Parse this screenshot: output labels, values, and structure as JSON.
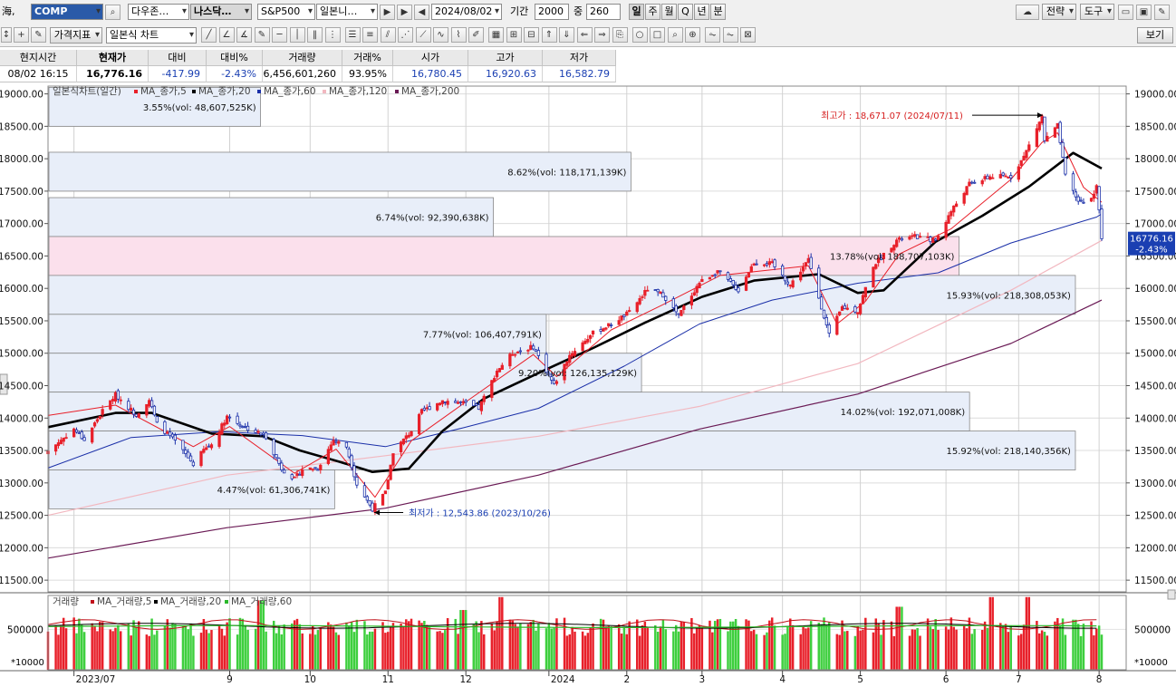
{
  "toolbar1": {
    "sea_label": "海,",
    "symbol": "COMP",
    "exchange_dd": "다우존…",
    "index_dd": "나스닥…",
    "sp_dd": "S&P500",
    "japan_dd": "일본니…",
    "date": "2024/08/02",
    "period_label": "기간",
    "period_value": "2000",
    "count_label": "중",
    "count_value": "260",
    "timeframes": [
      "일",
      "주",
      "월",
      "Q",
      "년",
      "분"
    ],
    "strategy_btn": "전략",
    "tools_btn": "도구"
  },
  "toolbar2": {
    "price_indicator_btn": "가격지표",
    "chart_type_dd": "일본식 차트",
    "view_btn": "보기"
  },
  "info": {
    "headers": [
      "현지시간",
      "현재가",
      "대비",
      "대비%",
      "거래량",
      "거래%",
      "시가",
      "고가",
      "저가"
    ],
    "values": [
      "08/02  16:15",
      "16,776.16",
      "-417.99",
      "-2.43%",
      "6,456,601,260",
      "93.95%",
      "16,780.45",
      "16,920.63",
      "16,582.79"
    ]
  },
  "colors": {
    "up": "#e8202a",
    "down": "#1a2fa8",
    "ma5": "#e8202a",
    "ma20": "#000000",
    "ma60": "#1a2fa8",
    "ma120": "#f2b8c0",
    "ma200": "#6a1a55",
    "vol_green": "#3ecf3e",
    "vol_red": "#e8202a",
    "profile_blue": "#e8eef9",
    "profile_pink": "#fbe0ec",
    "neg_badge": "#1a3fb2"
  },
  "chart_data": {
    "type": "candlestick",
    "title": "일본식차트(일간)",
    "legend": [
      "MA_종가,5",
      "MA_종가,20",
      "MA_종가,60",
      "MA_종가,120",
      "MA_종가,200"
    ],
    "y_ticks": [
      19000,
      18500,
      18000,
      17500,
      17000,
      16500,
      16000,
      15500,
      15000,
      14500,
      14000,
      13500,
      13000,
      12500,
      12000,
      11500
    ],
    "y_tick_labels": [
      "19000.00",
      "18500.00",
      "18000.00",
      "17500.00",
      "17000.00",
      "16500.00",
      "16000.00",
      "15500.00",
      "15000.00",
      "14500.00",
      "14000.00",
      "13500.00",
      "13000.00",
      "12500.00",
      "12000.00",
      "11500.00"
    ],
    "ylim": [
      11320,
      19120
    ],
    "x_months": [
      {
        "label": "2023/07",
        "date": "2023-07-03"
      },
      {
        "label": "9",
        "date": "2023-09-01"
      },
      {
        "label": "10",
        "date": "2023-10-02"
      },
      {
        "label": "11",
        "date": "2023-11-01"
      },
      {
        "label": "12",
        "date": "2023-12-01"
      },
      {
        "label": "2024",
        "date": "2024-01-02"
      },
      {
        "label": "2",
        "date": "2024-02-01"
      },
      {
        "label": "3",
        "date": "2024-03-01"
      },
      {
        "label": "4",
        "date": "2024-04-01"
      },
      {
        "label": "5",
        "date": "2024-05-01"
      },
      {
        "label": "6",
        "date": "2024-06-03"
      },
      {
        "label": "7",
        "date": "2024-07-01"
      },
      {
        "label": "8",
        "date": "2024-08-01"
      }
    ],
    "date_range": [
      "2023-06-23",
      "2024-08-02"
    ],
    "close_path": [
      [
        "2023-06-23",
        13490
      ],
      [
        "2023-07-03",
        13830
      ],
      [
        "2023-07-07",
        13660
      ],
      [
        "2023-07-14",
        14110
      ],
      [
        "2023-07-19",
        14360
      ],
      [
        "2023-07-27",
        14050
      ],
      [
        "2023-08-01",
        14280
      ],
      [
        "2023-08-04",
        13910
      ],
      [
        "2023-08-11",
        13640
      ],
      [
        "2023-08-18",
        13290
      ],
      [
        "2023-08-22",
        13510
      ],
      [
        "2023-08-25",
        13590
      ],
      [
        "2023-08-31",
        14030
      ],
      [
        "2023-09-06",
        13870
      ],
      [
        "2023-09-12",
        13770
      ],
      [
        "2023-09-15",
        13710
      ],
      [
        "2023-09-21",
        13220
      ],
      [
        "2023-09-26",
        13060
      ],
      [
        "2023-09-29",
        13210
      ],
      [
        "2023-10-05",
        13230
      ],
      [
        "2023-10-11",
        13660
      ],
      [
        "2023-10-16",
        13560
      ],
      [
        "2023-10-20",
        12980
      ],
      [
        "2023-10-26",
        12600
      ],
      [
        "2023-10-31",
        12850
      ],
      [
        "2023-11-03",
        13480
      ],
      [
        "2023-11-10",
        13800
      ],
      [
        "2023-11-14",
        14100
      ],
      [
        "2023-11-22",
        14270
      ],
      [
        "2023-11-30",
        14230
      ],
      [
        "2023-12-06",
        14150
      ],
      [
        "2023-12-13",
        14730
      ],
      [
        "2023-12-19",
        15000
      ],
      [
        "2023-12-27",
        15100
      ],
      [
        "2024-01-04",
        14510
      ],
      [
        "2024-01-10",
        14970
      ],
      [
        "2024-01-19",
        15310
      ],
      [
        "2024-01-26",
        15450
      ],
      [
        "2024-02-02",
        15630
      ],
      [
        "2024-02-09",
        15990
      ],
      [
        "2024-02-15",
        15900
      ],
      [
        "2024-02-21",
        15580
      ],
      [
        "2024-02-29",
        16090
      ],
      [
        "2024-03-07",
        16270
      ],
      [
        "2024-03-15",
        15970
      ],
      [
        "2024-03-21",
        16400
      ],
      [
        "2024-03-28",
        16380
      ],
      [
        "2024-04-04",
        16050
      ],
      [
        "2024-04-11",
        16440
      ],
      [
        "2024-04-19",
        15280
      ],
      [
        "2024-04-24",
        15710
      ],
      [
        "2024-04-30",
        15650
      ],
      [
        "2024-05-06",
        16350
      ],
      [
        "2024-05-15",
        16740
      ],
      [
        "2024-05-22",
        16800
      ],
      [
        "2024-05-30",
        16740
      ],
      [
        "2024-06-05",
        17190
      ],
      [
        "2024-06-12",
        17610
      ],
      [
        "2024-06-20",
        17720
      ],
      [
        "2024-06-28",
        17730
      ],
      [
        "2024-07-03",
        18030
      ],
      [
        "2024-07-10",
        18650
      ],
      [
        "2024-07-11",
        18280
      ],
      [
        "2024-07-16",
        18510
      ],
      [
        "2024-07-19",
        17730
      ],
      [
        "2024-07-24",
        17340
      ],
      [
        "2024-07-29",
        17370
      ],
      [
        "2024-07-31",
        17600
      ],
      [
        "2024-08-01",
        17190
      ],
      [
        "2024-08-02",
        16776
      ]
    ],
    "ma5_path": [
      [
        "2023-06-23",
        14040
      ],
      [
        "2023-07-19",
        14200
      ],
      [
        "2023-08-18",
        13560
      ],
      [
        "2023-09-01",
        13870
      ],
      [
        "2023-09-26",
        13150
      ],
      [
        "2023-10-12",
        13520
      ],
      [
        "2023-10-27",
        12780
      ],
      [
        "2023-11-10",
        13650
      ],
      [
        "2023-12-01",
        14250
      ],
      [
        "2023-12-27",
        14980
      ],
      [
        "2024-01-05",
        14640
      ],
      [
        "2024-01-26",
        15360
      ],
      [
        "2024-02-15",
        15750
      ],
      [
        "2024-03-08",
        16200
      ],
      [
        "2024-04-11",
        16350
      ],
      [
        "2024-04-22",
        15450
      ],
      [
        "2024-05-03",
        15800
      ],
      [
        "2024-05-16",
        16530
      ],
      [
        "2024-06-05",
        16920
      ],
      [
        "2024-06-28",
        17680
      ],
      [
        "2024-07-10",
        18250
      ],
      [
        "2024-07-16",
        18400
      ],
      [
        "2024-07-26",
        17560
      ],
      [
        "2024-08-02",
        17330
      ]
    ],
    "ma20_path": [
      [
        "2023-06-23",
        13860
      ],
      [
        "2023-07-19",
        14080
      ],
      [
        "2023-08-02",
        14080
      ],
      [
        "2023-08-25",
        13760
      ],
      [
        "2023-09-14",
        13720
      ],
      [
        "2023-09-28",
        13500
      ],
      [
        "2023-10-13",
        13330
      ],
      [
        "2023-10-26",
        13170
      ],
      [
        "2023-11-09",
        13220
      ],
      [
        "2023-11-22",
        13800
      ],
      [
        "2023-12-08",
        14300
      ],
      [
        "2024-01-02",
        14770
      ],
      [
        "2024-01-19",
        15080
      ],
      [
        "2024-02-08",
        15470
      ],
      [
        "2024-03-01",
        15870
      ],
      [
        "2024-03-21",
        16120
      ],
      [
        "2024-04-15",
        16220
      ],
      [
        "2024-04-30",
        15930
      ],
      [
        "2024-05-10",
        15970
      ],
      [
        "2024-05-30",
        16720
      ],
      [
        "2024-06-17",
        17120
      ],
      [
        "2024-07-05",
        17570
      ],
      [
        "2024-07-22",
        18090
      ],
      [
        "2024-08-02",
        17850
      ]
    ],
    "ma60_path": [
      [
        "2023-06-23",
        13230
      ],
      [
        "2023-07-25",
        13700
      ],
      [
        "2023-08-28",
        13790
      ],
      [
        "2023-09-29",
        13730
      ],
      [
        "2023-10-31",
        13560
      ],
      [
        "2023-11-30",
        13850
      ],
      [
        "2023-12-29",
        14150
      ],
      [
        "2024-01-31",
        14800
      ],
      [
        "2024-02-29",
        15450
      ],
      [
        "2024-03-28",
        15820
      ],
      [
        "2024-04-30",
        16080
      ],
      [
        "2024-05-31",
        16240
      ],
      [
        "2024-06-28",
        16700
      ],
      [
        "2024-07-31",
        17100
      ],
      [
        "2024-08-02",
        17150
      ]
    ],
    "ma120_path": [
      [
        "2023-06-23",
        12500
      ],
      [
        "2023-08-31",
        13120
      ],
      [
        "2023-10-31",
        13420
      ],
      [
        "2023-12-29",
        13720
      ],
      [
        "2024-02-29",
        14180
      ],
      [
        "2024-04-30",
        14840
      ],
      [
        "2024-06-28",
        15970
      ],
      [
        "2024-08-02",
        16740
      ]
    ],
    "ma200_path": [
      [
        "2023-06-23",
        11840
      ],
      [
        "2023-08-31",
        12310
      ],
      [
        "2023-10-31",
        12610
      ],
      [
        "2023-12-29",
        13120
      ],
      [
        "2024-02-29",
        13830
      ],
      [
        "2024-04-30",
        14370
      ],
      [
        "2024-06-28",
        15150
      ],
      [
        "2024-08-02",
        15820
      ]
    ],
    "volume_profile": [
      {
        "low": 18500,
        "high": 19100,
        "pct": "3.55%",
        "vol": "48,607,525K",
        "label": "3.55%(vol: 48,607,525K)",
        "share": 0.2
      },
      {
        "low": 17500,
        "high": 18100,
        "pct": "8.62%",
        "vol": "118,171,139K",
        "label": "8.62%(vol: 118,171,139K)",
        "share": 0.55
      },
      {
        "low": 16800,
        "high": 17400,
        "pct": "6.74%",
        "vol": "92,390,638K",
        "label": "6.74%(vol: 92,390,638K)",
        "share": 0.42
      },
      {
        "low": 16200,
        "high": 16800,
        "pct": "13.78%",
        "vol": "188,707,103K",
        "label": "13.78%(vol: 188,707,103K)",
        "share": 0.86,
        "current": true
      },
      {
        "low": 15600,
        "high": 16200,
        "pct": "15.93%",
        "vol": "218,308,053K",
        "label": "15.93%(vol: 218,308,053K)",
        "share": 0.97
      },
      {
        "low": 15000,
        "high": 15600,
        "pct": "7.77%",
        "vol": "106,407,791K",
        "label": "7.77%(vol: 106,407,791K)",
        "share": 0.47
      },
      {
        "low": 14400,
        "high": 15000,
        "pct": "9.20%",
        "vol": "126,135,129K",
        "label": "9.20%(vol: 126,135,129K)",
        "share": 0.56
      },
      {
        "low": 13800,
        "high": 14400,
        "pct": "14.02%",
        "vol": "192,071,008K",
        "label": "14.02%(vol: 192,071,008K)",
        "share": 0.87
      },
      {
        "low": 13200,
        "high": 13800,
        "pct": "15.92%",
        "vol": "218,140,356K",
        "label": "15.92%(vol: 218,140,356K)",
        "share": 0.97
      },
      {
        "low": 12600,
        "high": 13200,
        "pct": "4.47%",
        "vol": "61,306,741K",
        "label": "4.47%(vol: 61,306,741K)",
        "share": 0.27
      }
    ],
    "high_marker": {
      "label": "최고가 : 18,671.07 (2024/07/11)",
      "date": "2024-07-11",
      "value": 18671.07
    },
    "low_marker": {
      "label": "최저가 : 12,543.86 (2023/10/26)",
      "date": "2023-10-26",
      "value": 12543.86
    },
    "last_price": {
      "value": 16776.16,
      "text": "16776.16",
      "change": "-2.43%"
    },
    "volume": {
      "title": "거래량",
      "legend": [
        "MA_거래량,5",
        "MA_거래량,20",
        "MA_거래량,60"
      ],
      "y_tick": 500000,
      "y_tick_label": "500000",
      "unit": "*10000",
      "typical": 520000,
      "ylim": [
        0,
        920000
      ],
      "spikes": [
        [
          "2023-09-13",
          860000
        ],
        [
          "2023-11-30",
          740000
        ],
        [
          "2023-12-15",
          900000
        ],
        [
          "2024-06-21",
          900000
        ],
        [
          "2024-07-05",
          900000
        ],
        [
          "2024-05-16",
          780000
        ]
      ]
    }
  }
}
